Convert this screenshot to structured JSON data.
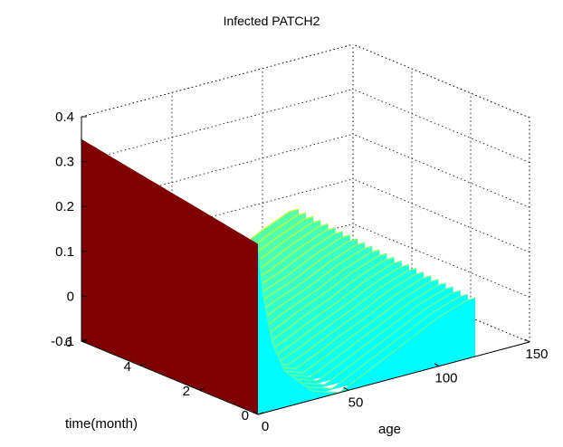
{
  "chart_data": {
    "type": "surface",
    "title": "Infected PATCH2",
    "xlabel": "age",
    "ylabel": "time(month)",
    "zlabel": "",
    "xlim": [
      0,
      150
    ],
    "ylim": [
      0,
      6
    ],
    "zlim": [
      -0.1,
      0.4
    ],
    "x_ticks": [
      "0",
      "50",
      "100",
      "150"
    ],
    "y_ticks": [
      "0",
      "2",
      "4",
      "6"
    ],
    "z_ticks": [
      "-0.1",
      "0",
      "0.1",
      "0.2",
      "0.3",
      "0.4"
    ],
    "colormap": "jet",
    "grid": true,
    "surface_profile": {
      "age": [
        0,
        3,
        8,
        15,
        30,
        45,
        55,
        70,
        85,
        100,
        115,
        120
      ],
      "value_at_time_0": [
        0.28,
        0.16,
        0.05,
        -0.02,
        -0.08,
        -0.1,
        -0.08,
        -0.05,
        -0.02,
        0.01,
        0.03,
        0.03
      ],
      "value_at_time_6": [
        0.35,
        0.22,
        0.1,
        0.03,
        -0.02,
        -0.05,
        -0.04,
        -0.01,
        0.01,
        0.04,
        0.065,
        0.065
      ]
    },
    "colors": {
      "dark_red": "#7f0000",
      "yellow": "#ffff00",
      "cyan": "#00ffff",
      "blue": "#0000ff",
      "orange": "#ff8000"
    }
  }
}
